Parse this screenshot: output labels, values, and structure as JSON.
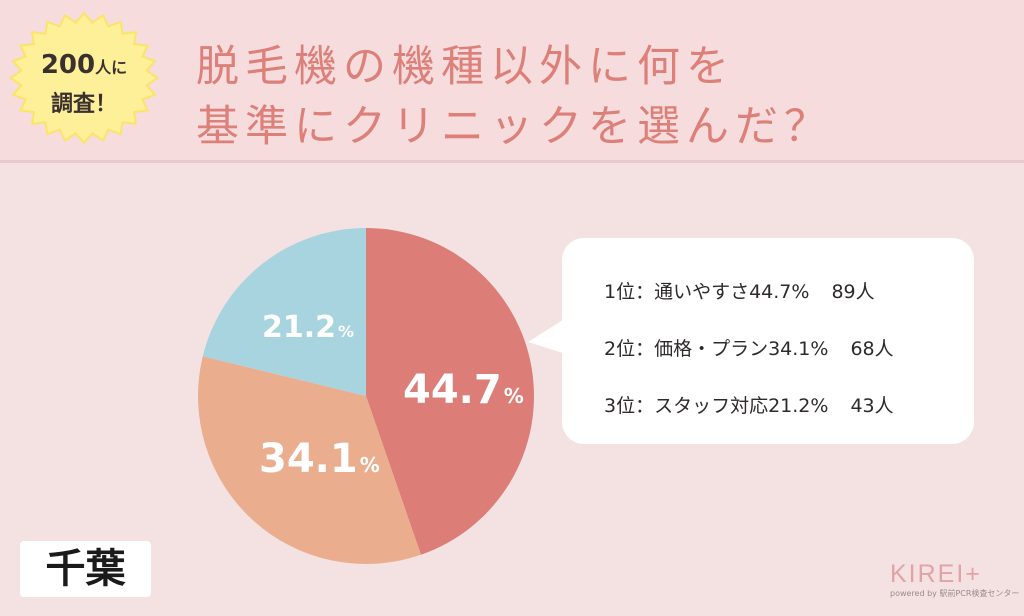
{
  "badge": {
    "count": "200",
    "suffix": "人に",
    "line2": "調査！"
  },
  "title": {
    "line1": "脱毛機の機種以外に何を",
    "line2": "基準にクリニックを選んだ？"
  },
  "chart_data": {
    "type": "pie",
    "categories": [
      "通いやすさ",
      "価格・プラン",
      "スタッフ対応"
    ],
    "values": [
      44.7,
      34.1,
      21.2
    ],
    "counts": [
      89,
      68,
      43
    ],
    "unit": "%",
    "colors": [
      "#dc7d78",
      "#eaae8e",
      "#a8d4e0"
    ]
  },
  "slice_labels": [
    {
      "value": "44.7",
      "unit": "%"
    },
    {
      "value": "34.1",
      "unit": "%"
    },
    {
      "value": "21.2",
      "unit": "%"
    }
  ],
  "ranking": [
    {
      "text": "1位：通いやすさ44.7%",
      "count": "89人"
    },
    {
      "text": "2位：価格・プラン34.1%",
      "count": "68人"
    },
    {
      "text": "3位：スタッフ対応21.2%",
      "count": "43人"
    }
  ],
  "region": "千葉",
  "logo": {
    "main": "KIREI+",
    "sub": "powered by 駅前PCR検査センター"
  }
}
